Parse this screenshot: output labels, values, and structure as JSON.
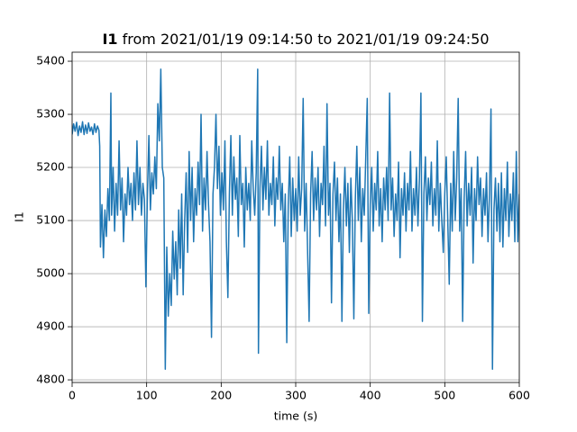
{
  "chart_data": {
    "type": "line",
    "title": {
      "variable": "I1",
      "text": "from 2021/01/19 09:14:50 to 2021/01/19 09:24:50"
    },
    "xlabel": "time (s)",
    "ylabel": "I1",
    "xlim": [
      0,
      600
    ],
    "ylim": [
      4795,
      5417
    ],
    "xticks": [
      0,
      100,
      200,
      300,
      400,
      500,
      600
    ],
    "yticks": [
      4800,
      4900,
      5000,
      5100,
      5200,
      5300,
      5400
    ],
    "grid": true,
    "color": "#1f77b4",
    "x": [
      0,
      2,
      4,
      6,
      8,
      10,
      12,
      14,
      16,
      18,
      20,
      22,
      24,
      26,
      28,
      30,
      32,
      34,
      36,
      37,
      38,
      40,
      42,
      44,
      46,
      48,
      50,
      52,
      53,
      55,
      57,
      59,
      61,
      63,
      65,
      67,
      69,
      71,
      73,
      75,
      77,
      79,
      81,
      83,
      85,
      87,
      89,
      91,
      93,
      95,
      97,
      99,
      101,
      103,
      105,
      107,
      109,
      111,
      113,
      115,
      117,
      119,
      121,
      123,
      125,
      127,
      129,
      131,
      133,
      135,
      137,
      139,
      141,
      143,
      145,
      147,
      149,
      151,
      153,
      155,
      157,
      159,
      161,
      163,
      165,
      167,
      169,
      171,
      173,
      175,
      177,
      179,
      181,
      183,
      185,
      187,
      189,
      191,
      193,
      195,
      197,
      199,
      201,
      203,
      205,
      207,
      209,
      211,
      213,
      215,
      217,
      219,
      221,
      223,
      225,
      227,
      229,
      231,
      233,
      235,
      237,
      239,
      241,
      243,
      245,
      247,
      249,
      250,
      252,
      254,
      256,
      258,
      260,
      262,
      264,
      266,
      268,
      270,
      272,
      274,
      276,
      278,
      280,
      282,
      284,
      286,
      288,
      290,
      292,
      294,
      296,
      298,
      300,
      302,
      304,
      306,
      308,
      310,
      312,
      314,
      316,
      318,
      320,
      322,
      324,
      326,
      328,
      330,
      332,
      334,
      336,
      338,
      340,
      342,
      344,
      346,
      348,
      350,
      352,
      354,
      356,
      358,
      360,
      362,
      364,
      366,
      368,
      370,
      372,
      374,
      376,
      378,
      380,
      382,
      384,
      386,
      388,
      390,
      392,
      394,
      396,
      398,
      400,
      402,
      404,
      406,
      408,
      410,
      412,
      414,
      416,
      418,
      420,
      422,
      424,
      426,
      428,
      430,
      432,
      434,
      436,
      438,
      440,
      442,
      444,
      446,
      448,
      450,
      452,
      454,
      456,
      458,
      460,
      462,
      464,
      466,
      468,
      470,
      472,
      474,
      476,
      478,
      480,
      482,
      484,
      486,
      488,
      490,
      492,
      494,
      496,
      498,
      500,
      502,
      504,
      506,
      508,
      510,
      512,
      514,
      516,
      518,
      520,
      522,
      524,
      526,
      528,
      530,
      532,
      534,
      536,
      538,
      540,
      542,
      544,
      546,
      548,
      550,
      552,
      554,
      556,
      558,
      560,
      562,
      564,
      566,
      568,
      570,
      572,
      574,
      576,
      578,
      580,
      582,
      584,
      586,
      588,
      590,
      592,
      594,
      596,
      598,
      600
    ],
    "values": [
      5262,
      5282,
      5268,
      5285,
      5260,
      5278,
      5266,
      5286,
      5262,
      5280,
      5264,
      5284,
      5268,
      5276,
      5262,
      5282,
      5266,
      5278,
      5270,
      5240,
      5050,
      5130,
      5030,
      5120,
      5070,
      5160,
      5100,
      5340,
      5110,
      5200,
      5080,
      5170,
      5110,
      5250,
      5120,
      5180,
      5060,
      5150,
      5110,
      5200,
      5130,
      5170,
      5100,
      5190,
      5120,
      5250,
      5130,
      5200,
      5110,
      5170,
      5140,
      4975,
      5150,
      5260,
      5120,
      5190,
      5150,
      5220,
      5160,
      5320,
      5250,
      5385,
      5200,
      5180,
      4820,
      5050,
      4920,
      5000,
      4940,
      5080,
      4990,
      5060,
      4960,
      5120,
      5010,
      5150,
      4960,
      5100,
      5190,
      5040,
      5230,
      5100,
      5200,
      5060,
      5160,
      5110,
      5210,
      5130,
      5300,
      5080,
      5180,
      5120,
      5230,
      5130,
      5060,
      4880,
      5150,
      5200,
      5300,
      5160,
      5240,
      5110,
      5190,
      5120,
      5250,
      5060,
      4955,
      5150,
      5260,
      5110,
      5220,
      5140,
      5180,
      5070,
      5260,
      5130,
      5170,
      5050,
      5200,
      5120,
      5170,
      5100,
      5250,
      5160,
      5110,
      5190,
      5385,
      4850,
      5160,
      5240,
      5120,
      5200,
      5140,
      5250,
      5110,
      5170,
      5130,
      5220,
      5090,
      5180,
      5140,
      5240,
      5120,
      5170,
      5060,
      5150,
      4870,
      5130,
      5220,
      5070,
      5180,
      5100,
      5160,
      5080,
      5220,
      5110,
      5160,
      5330,
      5080,
      5170,
      5040,
      4910,
      5150,
      5230,
      5100,
      5180,
      5120,
      5200,
      5070,
      5170,
      5130,
      5240,
      5090,
      5320,
      5110,
      5170,
      4945,
      5150,
      5210,
      5100,
      5180,
      5060,
      5150,
      4910,
      5120,
      5200,
      5090,
      5170,
      5040,
      5180,
      5100,
      4915,
      5140,
      5240,
      5100,
      5200,
      5060,
      5160,
      5110,
      5220,
      5330,
      4925,
      5130,
      5200,
      5080,
      5170,
      5120,
      5230,
      5090,
      5160,
      5060,
      5180,
      5120,
      5200,
      5100,
      5340,
      5120,
      5180,
      5070,
      5150,
      5100,
      5210,
      5030,
      5160,
      5110,
      5190,
      5080,
      5170,
      5120,
      5230,
      5080,
      5160,
      5110,
      5200,
      5090,
      5180,
      5340,
      4910,
      5150,
      5220,
      5100,
      5180,
      5130,
      5210,
      5090,
      5160,
      5110,
      5250,
      5080,
      5170,
      5100,
      5040,
      5150,
      5220,
      5100,
      4980,
      5170,
      5080,
      5230,
      5100,
      5180,
      5330,
      5080,
      5160,
      4910,
      5140,
      5230,
      5090,
      5170,
      5110,
      5200,
      5020,
      5160,
      5100,
      5220,
      5130,
      5180,
      5070,
      5160,
      5110,
      5190,
      5060,
      5150,
      5310,
      4820,
      5120,
      5180,
      5080,
      5170,
      5060,
      5190,
      5050,
      5160,
      5100,
      5210,
      5070,
      5150,
      5100,
      5190,
      5060,
      5230,
      5060,
      5150
    ]
  }
}
